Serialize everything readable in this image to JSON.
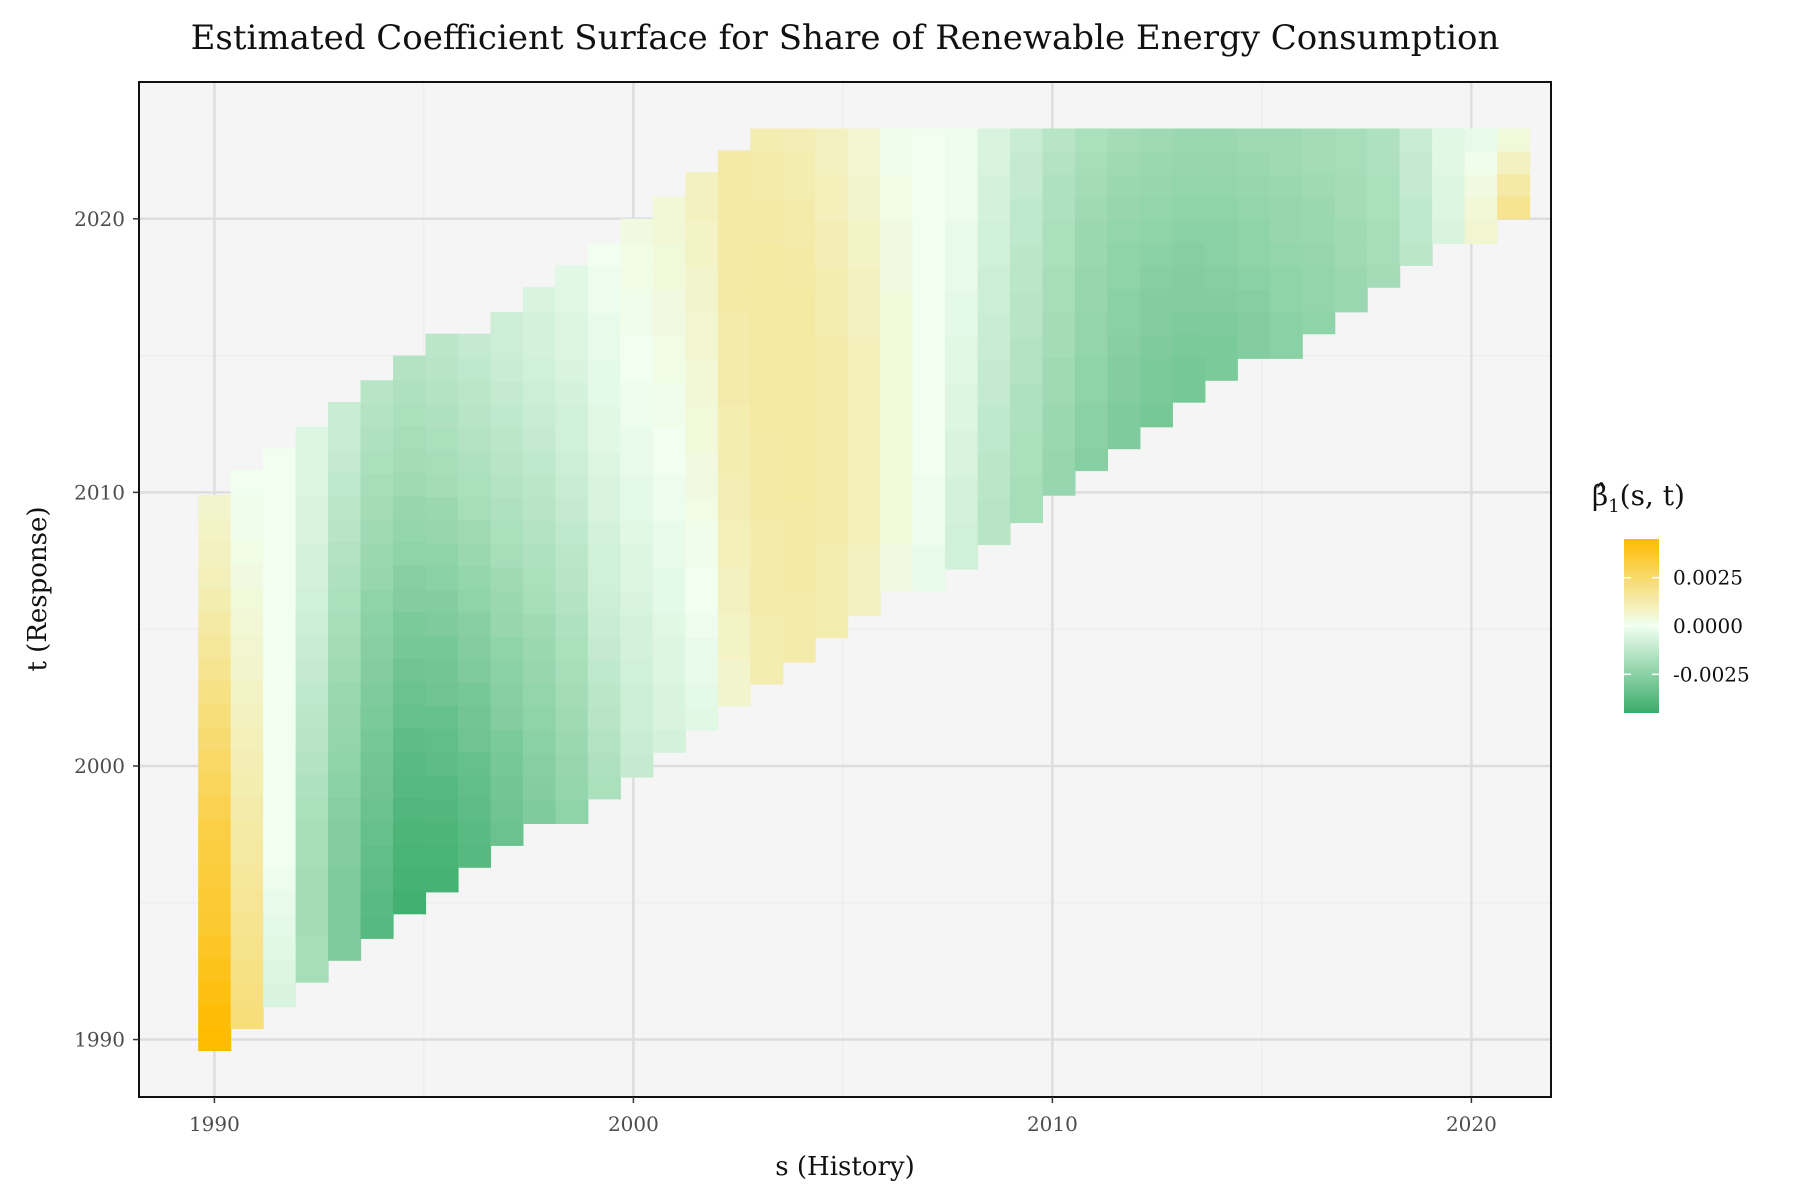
{
  "chart_data": {
    "type": "heatmap",
    "title": "Estimated Coefficient Surface for Share of Renewable Energy Consumption",
    "xlabel": "s (History)",
    "ylabel": "t (Response)",
    "xlim": [
      1988.2,
      2021.9
    ],
    "ylim": [
      1987.9,
      2025
    ],
    "x_ticks": [
      "1990",
      "2000",
      "2010",
      "2020"
    ],
    "y_ticks": [
      "1990",
      "2000",
      "2010",
      "2020"
    ],
    "grid": true,
    "legend": {
      "title_main": "β̂",
      "title_sub": "1",
      "title_rest": "(s, t)",
      "position": "right",
      "range": [
        -0.0045,
        0.0045
      ],
      "ticks": [
        {
          "value": 0.0025,
          "label": "0.0025"
        },
        {
          "value": 0.0,
          "label": "0.0000"
        },
        {
          "value": -0.0025,
          "label": "-0.0025"
        }
      ]
    },
    "colors": {
      "low": "#3aac6a",
      "mid": "#f0fff0",
      "high": "#ffbb00",
      "panel": "#f5f5f5",
      "grid": "#dddddd"
    },
    "s_start": 1990,
    "s_step": 0.775,
    "t_start": 1989.6,
    "t_step": 0.85,
    "t_max": 2023.3,
    "columns": [
      {
        "t_from": 1989.6,
        "t_to": 2009.9,
        "values": [
          0.0045,
          0.0044,
          0.0042,
          0.004,
          0.0038,
          0.0036,
          0.0035,
          0.0034,
          0.0033,
          0.0032,
          0.003,
          0.0028,
          0.0026,
          0.0024,
          0.0022,
          0.002,
          0.0018,
          0.0016,
          0.0014,
          0.0012,
          0.001,
          0.0009,
          0.0008,
          0.0007
        ]
      },
      {
        "t_from": 1990.4,
        "t_to": 2010.8,
        "values": [
          0.0022,
          0.0021,
          0.002,
          0.0019,
          0.0018,
          0.0017,
          0.0016,
          0.0015,
          0.0014,
          0.0013,
          0.0012,
          0.0011,
          0.001,
          0.0009,
          0.0008,
          0.0007,
          0.0006,
          0.0005,
          0.0004,
          0.0003,
          0.0002,
          0.0001,
          0.0001,
          0.0
        ]
      },
      {
        "t_from": 1991.2,
        "t_to": 2011.6,
        "values": [
          -0.0006,
          -0.0005,
          -0.0004,
          -0.0003,
          -0.0002,
          -0.0001,
          0.0,
          0.0,
          0.0,
          0.0,
          0.0,
          0.0,
          0.0,
          0.0,
          0.0,
          0.0,
          0.0,
          0.0,
          0.0,
          0.0,
          0.0,
          0.0,
          0.0,
          0.0
        ]
      },
      {
        "t_from": 1992.1,
        "t_to": 2012.4,
        "values": [
          -0.0018,
          -0.0018,
          -0.0019,
          -0.0019,
          -0.0019,
          -0.0018,
          -0.0018,
          -0.0017,
          -0.0016,
          -0.0015,
          -0.0014,
          -0.0013,
          -0.0012,
          -0.0011,
          -0.001,
          -0.0009,
          -0.0008,
          -0.0007,
          -0.0007,
          -0.0006,
          -0.0006,
          -0.0005,
          -0.0005,
          -0.0005
        ]
      },
      {
        "t_from": 1992.9,
        "t_to": 2013.3,
        "values": [
          -0.0028,
          -0.0028,
          -0.0028,
          -0.0028,
          -0.0027,
          -0.0027,
          -0.0026,
          -0.0025,
          -0.0024,
          -0.0023,
          -0.0022,
          -0.0021,
          -0.002,
          -0.0019,
          -0.0018,
          -0.0017,
          -0.0016,
          -0.0015,
          -0.0014,
          -0.0013,
          -0.0012,
          -0.0011,
          -0.001,
          -0.001
        ]
      },
      {
        "t_from": 1993.7,
        "t_to": 2014.1,
        "values": [
          -0.0038,
          -0.0037,
          -0.0036,
          -0.0035,
          -0.0034,
          -0.0033,
          -0.0032,
          -0.0031,
          -0.003,
          -0.0029,
          -0.0028,
          -0.0027,
          -0.0026,
          -0.0025,
          -0.0024,
          -0.0022,
          -0.0021,
          -0.002,
          -0.0019,
          -0.0018,
          -0.0017,
          -0.0016,
          -0.0015,
          -0.0014
        ]
      },
      {
        "t_from": 1994.6,
        "t_to": 2015.0,
        "values": [
          -0.0043,
          -0.0042,
          -0.0041,
          -0.004,
          -0.0039,
          -0.0038,
          -0.0037,
          -0.0036,
          -0.0034,
          -0.0033,
          -0.0032,
          -0.003,
          -0.0029,
          -0.0027,
          -0.0026,
          -0.0024,
          -0.0023,
          -0.0022,
          -0.002,
          -0.0019,
          -0.0018,
          -0.0017,
          -0.0016,
          -0.0015
        ]
      },
      {
        "t_from": 1995.4,
        "t_to": 2015.8,
        "values": [
          -0.0042,
          -0.0041,
          -0.004,
          -0.0039,
          -0.0038,
          -0.0036,
          -0.0035,
          -0.0034,
          -0.0032,
          -0.0031,
          -0.003,
          -0.0028,
          -0.0027,
          -0.0025,
          -0.0024,
          -0.0022,
          -0.0021,
          -0.0019,
          -0.0018,
          -0.0017,
          -0.0016,
          -0.0015,
          -0.0014,
          -0.0013
        ]
      },
      {
        "t_from": 1996.3,
        "t_to": 2015.8,
        "values": [
          -0.0038,
          -0.0037,
          -0.0036,
          -0.0035,
          -0.0034,
          -0.0032,
          -0.0031,
          -0.003,
          -0.0028,
          -0.0027,
          -0.0026,
          -0.0024,
          -0.0023,
          -0.0021,
          -0.002,
          -0.0018,
          -0.0017,
          -0.0016,
          -0.0015,
          -0.0014,
          -0.0013,
          -0.0012,
          -0.0011
        ]
      },
      {
        "t_from": 1997.1,
        "t_to": 2016.6,
        "values": [
          -0.0033,
          -0.0032,
          -0.0031,
          -0.003,
          -0.0029,
          -0.0027,
          -0.0026,
          -0.0025,
          -0.0024,
          -0.0022,
          -0.0021,
          -0.002,
          -0.0018,
          -0.0017,
          -0.0016,
          -0.0015,
          -0.0014,
          -0.0013,
          -0.0012,
          -0.0011,
          -0.001,
          -0.0009,
          -0.0009
        ]
      },
      {
        "t_from": 1997.9,
        "t_to": 2017.5,
        "values": [
          -0.0028,
          -0.0027,
          -0.0026,
          -0.0025,
          -0.0024,
          -0.0023,
          -0.0022,
          -0.0021,
          -0.002,
          -0.0018,
          -0.0017,
          -0.0016,
          -0.0015,
          -0.0014,
          -0.0013,
          -0.0012,
          -0.0011,
          -0.001,
          -0.0009,
          -0.0008,
          -0.0007,
          -0.0007,
          -0.0006
        ]
      },
      {
        "t_from": 1997.9,
        "t_to": 2018.3,
        "values": [
          -0.0024,
          -0.0023,
          -0.0022,
          -0.0021,
          -0.002,
          -0.0019,
          -0.0018,
          -0.0017,
          -0.0016,
          -0.0015,
          -0.0014,
          -0.0013,
          -0.0012,
          -0.0011,
          -0.001,
          -0.0009,
          -0.0008,
          -0.0008,
          -0.0007,
          -0.0006,
          -0.0005,
          -0.0005,
          -0.0004,
          -0.0004
        ]
      },
      {
        "t_from": 1998.8,
        "t_to": 2019.1,
        "values": [
          -0.0017,
          -0.0016,
          -0.0015,
          -0.0014,
          -0.0013,
          -0.0012,
          -0.0011,
          -0.001,
          -0.0009,
          -0.0008,
          -0.0008,
          -0.0007,
          -0.0006,
          -0.0006,
          -0.0005,
          -0.0004,
          -0.0004,
          -0.0003,
          -0.0003,
          -0.0002,
          -0.0002,
          -0.0001,
          -0.0001,
          0.0
        ]
      },
      {
        "t_from": 1999.6,
        "t_to": 2020.0,
        "values": [
          -0.0011,
          -0.001,
          -0.0009,
          -0.0009,
          -0.0008,
          -0.0007,
          -0.0007,
          -0.0006,
          -0.0005,
          -0.0005,
          -0.0004,
          -0.0003,
          -0.0003,
          -0.0002,
          -0.0002,
          -0.0001,
          -0.0001,
          0.0,
          0.0,
          0.0001,
          0.0001,
          0.0002,
          0.0002,
          0.0003
        ]
      },
      {
        "t_from": 2000.5,
        "t_to": 2020.8,
        "values": [
          -0.0007,
          -0.0006,
          -0.0006,
          -0.0005,
          -0.0005,
          -0.0004,
          -0.0003,
          -0.0003,
          -0.0002,
          -0.0002,
          -0.0001,
          -0.0001,
          0.0,
          0.0,
          0.0001,
          0.0001,
          0.0002,
          0.0002,
          0.0003,
          0.0003,
          0.0004,
          0.0004,
          0.0005,
          0.0005
        ]
      },
      {
        "t_from": 2001.3,
        "t_to": 2021.7,
        "values": [
          -0.0004,
          -0.0003,
          -0.0002,
          -0.0002,
          -0.0001,
          0.0,
          0.0,
          0.0001,
          0.0001,
          0.0002,
          0.0003,
          0.0003,
          0.0004,
          0.0004,
          0.0005,
          0.0005,
          0.0006,
          0.0006,
          0.0007,
          0.0007,
          0.0008,
          0.0008,
          0.0009,
          0.0009
        ]
      },
      {
        "t_from": 2002.2,
        "t_to": 2022.5,
        "values": [
          0.0007,
          0.0007,
          0.0008,
          0.0008,
          0.0009,
          0.0009,
          0.001,
          0.001,
          0.0011,
          0.0011,
          0.0012,
          0.0012,
          0.0012,
          0.0013,
          0.0013,
          0.0013,
          0.0013,
          0.0014,
          0.0014,
          0.0014,
          0.0014,
          0.0014,
          0.0014,
          0.0014
        ]
      },
      {
        "t_from": 2003.0,
        "t_to": 2023.3,
        "values": [
          0.0012,
          0.0012,
          0.0012,
          0.0013,
          0.0013,
          0.0013,
          0.0013,
          0.0014,
          0.0014,
          0.0014,
          0.0014,
          0.0015,
          0.0015,
          0.0015,
          0.0015,
          0.0015,
          0.0015,
          0.0015,
          0.0015,
          0.0014,
          0.0014,
          0.0013,
          0.0013,
          0.0012
        ]
      },
      {
        "t_from": 2003.8,
        "t_to": 2023.3,
        "values": [
          0.0013,
          0.0013,
          0.0013,
          0.0014,
          0.0014,
          0.0014,
          0.0014,
          0.0015,
          0.0015,
          0.0015,
          0.0015,
          0.0015,
          0.0015,
          0.0015,
          0.0015,
          0.0015,
          0.0014,
          0.0014,
          0.0013,
          0.0013,
          0.0012,
          0.0012,
          0.0011
        ]
      },
      {
        "t_from": 2004.7,
        "t_to": 2023.3,
        "values": [
          0.0012,
          0.0012,
          0.0012,
          0.0012,
          0.0013,
          0.0013,
          0.0013,
          0.0013,
          0.0013,
          0.0013,
          0.0013,
          0.0013,
          0.0013,
          0.0012,
          0.0012,
          0.0012,
          0.0011,
          0.0011,
          0.001,
          0.001,
          0.0009,
          0.0009
        ]
      },
      {
        "t_from": 2005.5,
        "t_to": 2023.3,
        "values": [
          0.0009,
          0.0009,
          0.0009,
          0.001,
          0.001,
          0.001,
          0.001,
          0.001,
          0.001,
          0.001,
          0.001,
          0.001,
          0.0009,
          0.0009,
          0.0009,
          0.0008,
          0.0008,
          0.0007,
          0.0007,
          0.0006,
          0.0006
        ]
      },
      {
        "t_from": 2006.4,
        "t_to": 2023.3,
        "values": [
          0.0003,
          0.0003,
          0.0004,
          0.0004,
          0.0004,
          0.0004,
          0.0004,
          0.0004,
          0.0004,
          0.0004,
          0.0004,
          0.0004,
          0.0004,
          0.0003,
          0.0003,
          0.0003,
          0.0002,
          0.0002,
          0.0001,
          0.0001
        ]
      },
      {
        "t_from": 2006.4,
        "t_to": 2023.3,
        "values": [
          -0.0002,
          -0.0002,
          -0.0001,
          -0.0001,
          -0.0001,
          0.0,
          0.0,
          0.0,
          0.0,
          0.0,
          0.0,
          0.0,
          0.0,
          0.0,
          0.0,
          0.0,
          0.0,
          0.0,
          0.0,
          0.0
        ]
      },
      {
        "t_from": 2007.2,
        "t_to": 2023.3,
        "values": [
          -0.0008,
          -0.0008,
          -0.0007,
          -0.0007,
          -0.0006,
          -0.0006,
          -0.0005,
          -0.0005,
          -0.0004,
          -0.0004,
          -0.0003,
          -0.0003,
          -0.0002,
          -0.0002,
          -0.0002,
          -0.0001,
          -0.0001,
          -0.0001,
          -0.0001
        ]
      },
      {
        "t_from": 2008.1,
        "t_to": 2023.3,
        "values": [
          -0.0014,
          -0.0014,
          -0.0013,
          -0.0013,
          -0.0012,
          -0.0012,
          -0.0011,
          -0.0011,
          -0.001,
          -0.001,
          -0.0009,
          -0.0009,
          -0.0008,
          -0.0008,
          -0.0007,
          -0.0007,
          -0.0006,
          -0.0006
        ]
      },
      {
        "t_from": 2008.9,
        "t_to": 2023.3,
        "values": [
          -0.0018,
          -0.0018,
          -0.0017,
          -0.0017,
          -0.0016,
          -0.0016,
          -0.0015,
          -0.0015,
          -0.0014,
          -0.0014,
          -0.0013,
          -0.0013,
          -0.0012,
          -0.0012,
          -0.0011,
          -0.0011,
          -0.001
        ]
      },
      {
        "t_from": 2009.9,
        "t_to": 2023.3,
        "values": [
          -0.0022,
          -0.0022,
          -0.0021,
          -0.0021,
          -0.002,
          -0.002,
          -0.0019,
          -0.0019,
          -0.0018,
          -0.0018,
          -0.0017,
          -0.0017,
          -0.0016,
          -0.0016,
          -0.0015,
          -0.0014
        ]
      },
      {
        "t_from": 2010.8,
        "t_to": 2023.3,
        "values": [
          -0.0026,
          -0.0025,
          -0.0025,
          -0.0024,
          -0.0024,
          -0.0023,
          -0.0023,
          -0.0022,
          -0.0022,
          -0.0021,
          -0.0021,
          -0.002,
          -0.0019,
          -0.0018,
          -0.0017
        ]
      },
      {
        "t_from": 2011.6,
        "t_to": 2023.3,
        "values": [
          -0.0028,
          -0.0028,
          -0.0027,
          -0.0027,
          -0.0026,
          -0.0025,
          -0.0025,
          -0.0024,
          -0.0024,
          -0.0023,
          -0.0022,
          -0.0021,
          -0.002,
          -0.0019
        ]
      },
      {
        "t_from": 2012.4,
        "t_to": 2023.3,
        "values": [
          -0.003,
          -0.0029,
          -0.0029,
          -0.0028,
          -0.0027,
          -0.0027,
          -0.0026,
          -0.0025,
          -0.0024,
          -0.0023,
          -0.0022,
          -0.0021,
          -0.002
        ]
      },
      {
        "t_from": 2013.3,
        "t_to": 2023.3,
        "values": [
          -0.003,
          -0.003,
          -0.0029,
          -0.0028,
          -0.0027,
          -0.0027,
          -0.0026,
          -0.0025,
          -0.0024,
          -0.0023,
          -0.0022,
          -0.0021
        ]
      },
      {
        "t_from": 2014.1,
        "t_to": 2023.3,
        "values": [
          -0.0029,
          -0.0029,
          -0.0028,
          -0.0027,
          -0.0026,
          -0.0025,
          -0.0025,
          -0.0024,
          -0.0023,
          -0.0022,
          -0.0021
        ]
      },
      {
        "t_from": 2014.9,
        "t_to": 2023.3,
        "values": [
          -0.0027,
          -0.0027,
          -0.0026,
          -0.0025,
          -0.0024,
          -0.0024,
          -0.0023,
          -0.0022,
          -0.0021,
          -0.002
        ]
      },
      {
        "t_from": 2014.9,
        "t_to": 2023.3,
        "values": [
          -0.0025,
          -0.0025,
          -0.0024,
          -0.0024,
          -0.0023,
          -0.0022,
          -0.0022,
          -0.0021,
          -0.002,
          -0.002
        ]
      },
      {
        "t_from": 2015.8,
        "t_to": 2023.3,
        "values": [
          -0.0024,
          -0.0023,
          -0.0023,
          -0.0022,
          -0.0021,
          -0.0021,
          -0.002,
          -0.0019,
          -0.0019
        ]
      },
      {
        "t_from": 2016.6,
        "t_to": 2023.3,
        "values": [
          -0.0021,
          -0.0021,
          -0.002,
          -0.002,
          -0.0019,
          -0.0019,
          -0.0018,
          -0.0018
        ]
      },
      {
        "t_from": 2017.5,
        "t_to": 2023.3,
        "values": [
          -0.0019,
          -0.0018,
          -0.0018,
          -0.0017,
          -0.0017,
          -0.0016,
          -0.0016
        ]
      },
      {
        "t_from": 2018.3,
        "t_to": 2023.3,
        "values": [
          -0.0013,
          -0.0012,
          -0.0012,
          -0.0011,
          -0.0011,
          -0.001
        ]
      },
      {
        "t_from": 2019.1,
        "t_to": 2023.3,
        "values": [
          -0.0006,
          -0.0005,
          -0.0005,
          -0.0004,
          -0.0004
        ]
      },
      {
        "t_from": 2019.1,
        "t_to": 2023.3,
        "values": [
          0.0006,
          0.0005,
          0.0003,
          0.0001,
          -0.0002
        ]
      },
      {
        "t_from": 2020.0,
        "t_to": 2023.3,
        "values": [
          0.0018,
          0.0014,
          0.0009,
          0.0004
        ]
      }
    ]
  }
}
